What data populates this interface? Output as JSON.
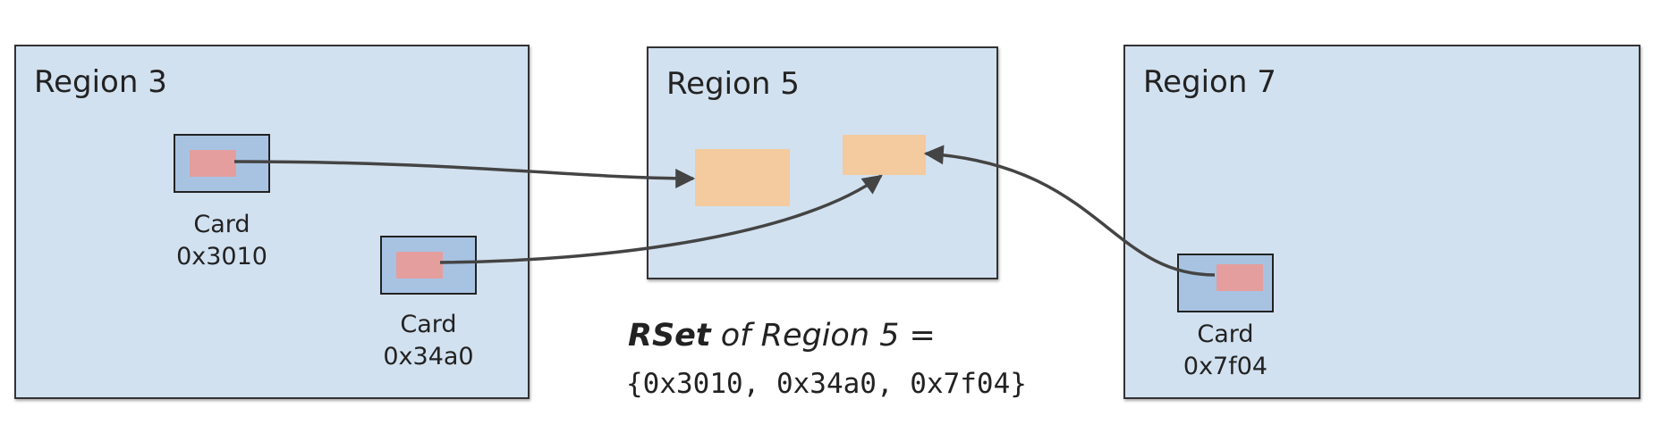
{
  "regions": [
    {
      "id": "region-3",
      "title": "Region 3"
    },
    {
      "id": "region-5",
      "title": "Region 5"
    },
    {
      "id": "region-7",
      "title": "Region 7"
    }
  ],
  "cards": [
    {
      "id": "card-0x3010",
      "word": "Card",
      "address": "0x3010"
    },
    {
      "id": "card-0x34a0",
      "word": "Card",
      "address": "0x34a0"
    },
    {
      "id": "card-0x7f04",
      "word": "Card",
      "address": "0x7f04"
    }
  ],
  "rset": {
    "bold": "RSet",
    "rest": " of Region 5 =",
    "values": "{0x3010, 0x34a0, 0x7f04}"
  },
  "colors": {
    "region_fill": "#d2e1f0",
    "card_fill": "#a8c3e2",
    "card_mark": "#e49e9e",
    "object_fill": "#f4ca9f",
    "arrow": "#444444"
  }
}
